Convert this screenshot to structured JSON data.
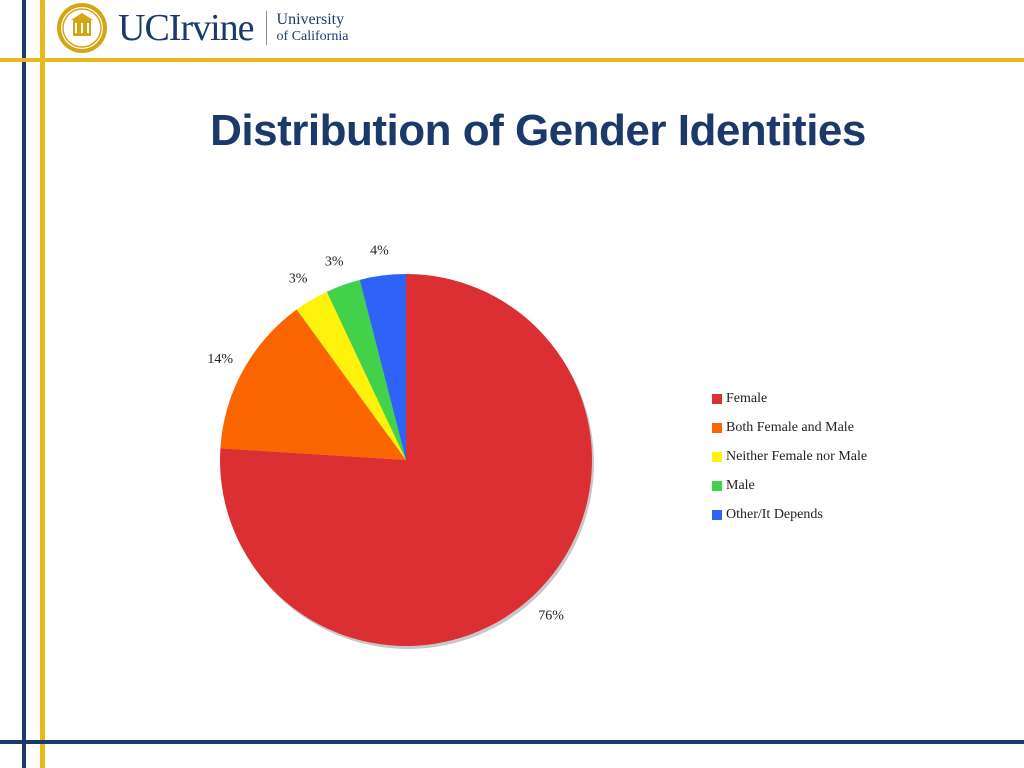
{
  "header": {
    "logo_primary": "UCIrvine",
    "logo_secondary_line1": "University",
    "logo_secondary_line2": "of California"
  },
  "chart_data": {
    "type": "pie",
    "title": "Distribution of Gender Identities",
    "categories": [
      "Female",
      "Both Female and Male",
      "Neither Female nor Male",
      "Male",
      "Other/It Depends"
    ],
    "values": [
      76,
      14,
      3,
      3,
      4
    ],
    "data_labels": [
      "76%",
      "14%",
      "3%",
      "3%",
      "4%"
    ],
    "colors": [
      "#dc2f34",
      "#fb6500",
      "#fcf20c",
      "#41d24a",
      "#2f63f7"
    ],
    "start_angle": "12 o'clock",
    "direction": "clockwise",
    "legend_placement": "right"
  },
  "colors": {
    "navy": "#1b3a6b",
    "gold": "#e7b91a"
  }
}
